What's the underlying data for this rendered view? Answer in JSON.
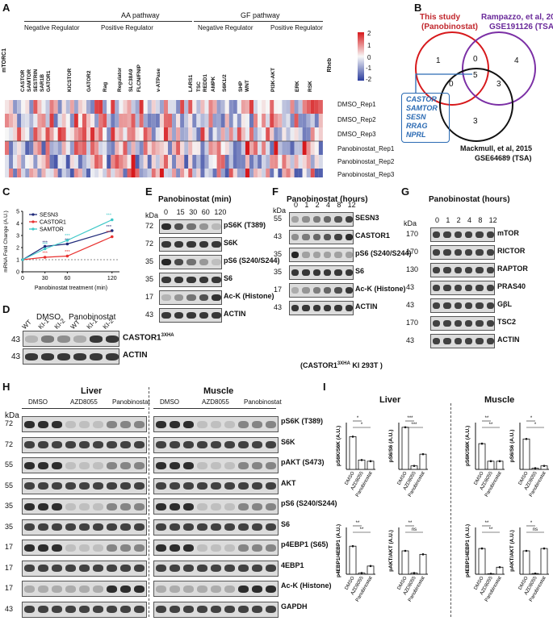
{
  "panels": {
    "A": "A",
    "B": "B",
    "C": "C",
    "D": "D",
    "E": "E",
    "F": "F",
    "G": "G",
    "H": "H",
    "I": "I"
  },
  "heatmap": {
    "pathways": [
      "AA pathway",
      "GF pathway"
    ],
    "groups": [
      "mTORC1",
      "Negative Regulator",
      "Positive Regulator",
      "Negative Regulator",
      "Positive Regulator",
      "Rheb"
    ],
    "subgroups": [
      "CASTOR",
      "SAMTOR",
      "SESTRIN",
      "SAR1B",
      "GATOR1",
      "KICSTOR",
      "GATOR2",
      "Rag",
      "Regulator",
      "SLC38A9",
      "FLCN/FNIP",
      "v-ATPase",
      "LARS1",
      "TSC",
      "REDD1",
      "AMPK",
      "S6K1/2",
      "SHP",
      "WNT",
      "PI3K-AKT",
      "ERK",
      "RSK"
    ],
    "rows": [
      "DMSO_Rep1",
      "DMSO_Rep2",
      "DMSO_Rep3",
      "Panobinostat_Rep1",
      "Panobinostat_Rep2",
      "Panobinostat_Rep3"
    ],
    "colorbar": [
      "2",
      "1",
      "0",
      "-1",
      "-2"
    ],
    "colors": {
      "high": "#d7191c",
      "mid": "#f7f7f7",
      "low": "#2c3e9e"
    }
  },
  "venn": {
    "set1": "This study",
    "set1b": "(Panobinostat)",
    "set2": "Rampazzo, et al, 2022",
    "set2b": "GSE191126 (TSA)",
    "set3": "Mackmull, et al, 2015",
    "set3b": "GSE64689 (TSA)",
    "n1": "1",
    "n2": "4",
    "n12": "0",
    "n13": "0",
    "n123": "5",
    "n23": "3",
    "n3": "3",
    "genes": [
      "CASTOR",
      "SAMTOR",
      "SESN",
      "RRAG",
      "NPRL"
    ]
  },
  "chart_data": {
    "type": "line",
    "x": [
      0,
      30,
      60,
      120
    ],
    "xlabel": "Panobinostat treatment (min)",
    "ylabel": "mRNA Fold Change (A.U.)",
    "ylim": [
      0,
      5
    ],
    "yticks": [
      "0",
      "1",
      "2",
      "3",
      "4",
      "5"
    ],
    "xticks": [
      "0",
      "30",
      "60",
      "120"
    ],
    "series": [
      {
        "name": "SESN3",
        "color": "#1f2a7a",
        "values": [
          1,
          2.1,
          2.3,
          3.4
        ]
      },
      {
        "name": "CASTOR1",
        "color": "#e8312f",
        "values": [
          1,
          1.2,
          1.3,
          2.9
        ]
      },
      {
        "name": "SAMTOR",
        "color": "#3ec8c8",
        "values": [
          1,
          1.9,
          2.6,
          4.3
        ]
      }
    ],
    "sig": "***"
  },
  "D": {
    "kda": "43",
    "kda2": "43",
    "header1": "DMSO",
    "header2": "Panobinostat",
    "lanes": [
      "WT",
      "KI-1",
      "KI-2",
      "WT",
      "KI-1",
      "KI-2"
    ],
    "rows": [
      "CASTOR1",
      "ACTIN"
    ],
    "sup": "3XHA"
  },
  "E": {
    "title": "Panobinostat (min)",
    "kda_label": "kDa",
    "lanes": [
      "0",
      "15",
      "30",
      "60",
      "120"
    ],
    "kda": [
      "72",
      "72",
      "35",
      "35",
      "17",
      "43"
    ],
    "rows": [
      "pS6K (T389)",
      "S6K",
      "pS6 (S240/S244)",
      "S6",
      "Ac-K (Histone)",
      "ACTIN"
    ]
  },
  "F": {
    "title": "Panobinostat (hours)",
    "kda_label": "kDa",
    "lanes": [
      "0",
      "1",
      "2",
      "4",
      "8",
      "12"
    ],
    "kda": [
      "55",
      "43",
      "35",
      "35",
      "17",
      "43"
    ],
    "rows": [
      "SESN3",
      "CASTOR1",
      "pS6 (S240/S244)",
      "S6",
      "Ac-K (Histone)",
      "ACTIN"
    ],
    "sup": "3XHA",
    "footer": "(CASTOR1",
    "footer_sup": "3XHA",
    "footer2": "KI 293T )"
  },
  "G": {
    "title": "Panobinostat (hours)",
    "kda_label": "kDa",
    "lanes": [
      "0",
      "1",
      "2",
      "4",
      "8",
      "12"
    ],
    "kda": [
      "170",
      "170",
      "130",
      "43",
      "43",
      "170",
      "43"
    ],
    "rows": [
      "mTOR",
      "RICTOR",
      "RAPTOR",
      "PRAS40",
      "GβL",
      "TSC2",
      "ACTIN"
    ]
  },
  "H": {
    "liver": "Liver",
    "muscle": "Muscle",
    "kda_label": "kDa",
    "treatments": [
      "DMSO",
      "AZD8055",
      "Panobinostat"
    ],
    "kda": [
      "72",
      "72",
      "55",
      "55",
      "35",
      "35",
      "17",
      "17",
      "17",
      "43"
    ],
    "rows": [
      "pS6K (T389)",
      "S6K",
      "pAKT (S473)",
      "AKT",
      "pS6 (S240/S244)",
      "S6",
      "p4EBP1 (S65)",
      "4EBP1",
      "Ac-K (Histone)",
      "GAPDH"
    ]
  },
  "I": {
    "liver": "Liver",
    "muscle": "Muscle",
    "xcats": [
      "DMSO",
      "AZD8055",
      "Panobinostat"
    ],
    "plots": [
      {
        "ylabel": "pS6K/S6K (A.U.)",
        "vals": [
          1.4,
          0.4,
          0.35
        ],
        "sig": [
          "*",
          "*"
        ]
      },
      {
        "ylabel": "pS6/S6 (A.U.)",
        "vals": [
          1.8,
          0.15,
          0.65
        ],
        "sig": [
          "***",
          "***"
        ]
      },
      {
        "ylabel": "pS6K/S6K (A.U.)",
        "vals": [
          1.1,
          0.35,
          0.35
        ],
        "sig": [
          "**",
          "**"
        ]
      },
      {
        "ylabel": "pS6/S6 (A.U.)",
        "vals": [
          1.3,
          0.05,
          0.15
        ],
        "sig": [
          "*",
          "*"
        ]
      },
      {
        "ylabel": "p4EBP1/4EBP1 (A.U.)",
        "vals": [
          1.2,
          0.05,
          0.35
        ],
        "sig": [
          "**",
          "**"
        ]
      },
      {
        "ylabel": "pAKT/AKT (A.U.)",
        "vals": [
          1.0,
          0.05,
          0.85
        ],
        "sig": [
          "**",
          "ns"
        ]
      },
      {
        "ylabel": "p4EBP1/4EBP1 (A.U.)",
        "vals": [
          1.1,
          0.02,
          0.3
        ],
        "sig": [
          "**",
          "**"
        ]
      },
      {
        "ylabel": "pAKT/AKT (A.U.)",
        "vals": [
          1.0,
          0.03,
          1.1
        ],
        "sig": [
          "*",
          "ns"
        ]
      }
    ]
  }
}
